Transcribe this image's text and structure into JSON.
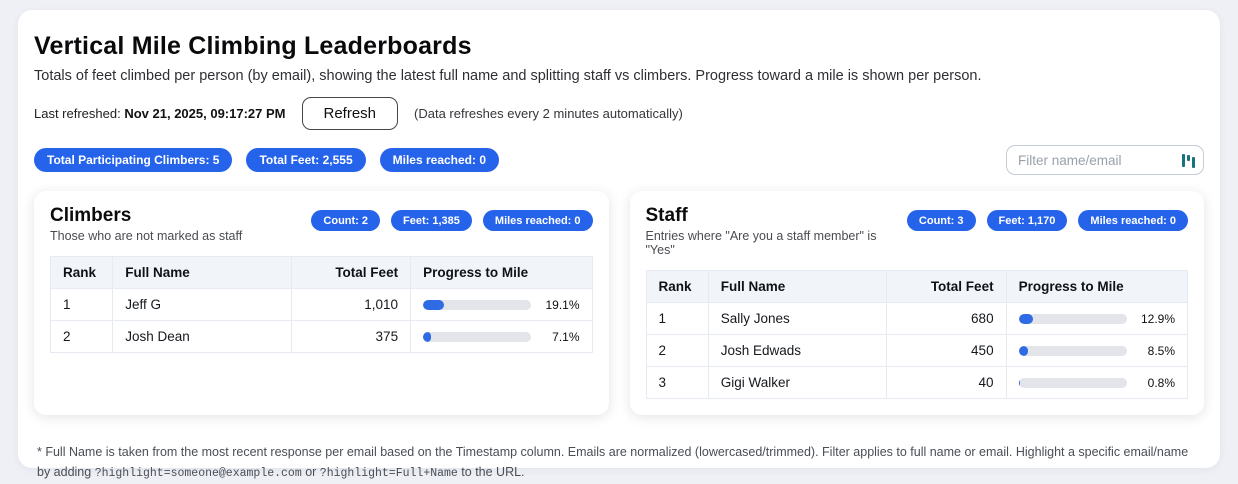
{
  "page": {
    "title": "Vertical Mile Climbing Leaderboards",
    "subtitle": "Totals of feet climbed per person (by email), showing the latest full name and splitting staff vs climbers. Progress toward a mile is shown per person.",
    "last_refreshed_label": "Last refreshed:",
    "last_refreshed_value": "Nov 21, 2025, 09:17:27 PM",
    "refresh_button": "Refresh",
    "refresh_note": "(Data refreshes every 2 minutes automatically)"
  },
  "stats": [
    "Total Participating Climbers: 5",
    "Total Feet: 2,555",
    "Miles reached: 0"
  ],
  "filter": {
    "placeholder": "Filter name/email",
    "icon": "form-fill-extension-icon"
  },
  "colors": {
    "accent_blue": "#2563eb",
    "progress_fill": "#2f6be4",
    "progress_track": "#e3e5ea",
    "table_header_bg": "#f1f4f9",
    "page_bg": "#eef0f6",
    "filter_icon_teal": "#19737e"
  },
  "table_columns": [
    "Rank",
    "Full Name",
    "Total Feet",
    "Progress to Mile"
  ],
  "climbers": {
    "title": "Climbers",
    "subtitle": "Those who are not marked as staff",
    "badges": [
      "Count: 2",
      "Feet: 1,385",
      "Miles reached: 0"
    ],
    "rows": [
      {
        "rank": "1",
        "name": "Jeff G",
        "feet": "1,010",
        "pct": "19.1%",
        "pct_value": 19.1
      },
      {
        "rank": "2",
        "name": "Josh Dean",
        "feet": "375",
        "pct": "7.1%",
        "pct_value": 7.1
      }
    ]
  },
  "staff": {
    "title": "Staff",
    "subtitle": "Entries where \"Are you a staff member\" is \"Yes\"",
    "badges": [
      "Count: 3",
      "Feet: 1,170",
      "Miles reached: 0"
    ],
    "rows": [
      {
        "rank": "1",
        "name": "Sally Jones",
        "feet": "680",
        "pct": "12.9%",
        "pct_value": 12.9
      },
      {
        "rank": "2",
        "name": "Josh Edwads",
        "feet": "450",
        "pct": "8.5%",
        "pct_value": 8.5
      },
      {
        "rank": "3",
        "name": "Gigi Walker",
        "feet": "40",
        "pct": "0.8%",
        "pct_value": 0.8
      }
    ]
  },
  "footnote": {
    "text_before": "* Full Name is taken from the most recent response per email based on the Timestamp column. Emails are normalized (lowercased/trimmed). Filter applies to full name or email. Highlight a specific email/name by adding ",
    "code1": "?highlight=someone@example.com",
    "text_mid": " or ",
    "code2": "?highlight=Full+Name",
    "text_after": " to the URL."
  }
}
